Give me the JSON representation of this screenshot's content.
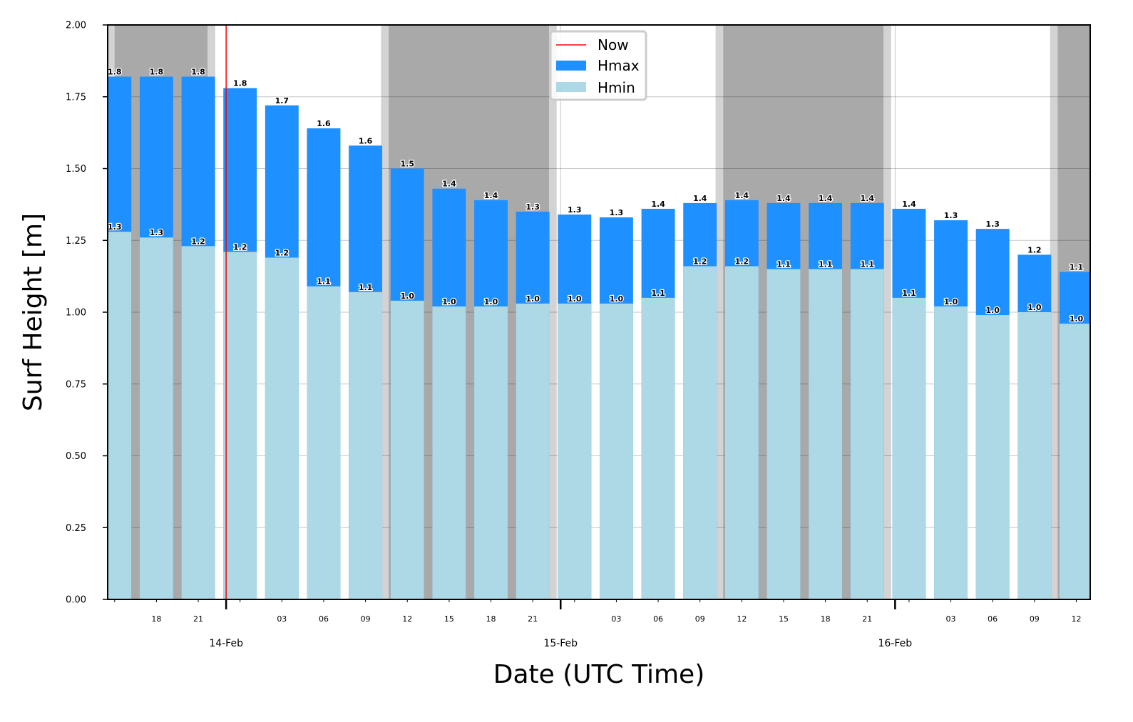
{
  "chart_data": {
    "type": "bar",
    "xlabel": "Date (UTC Time)",
    "ylabel": "Surf Height [m]",
    "ylim": [
      0,
      2.0
    ],
    "yticks": [
      "0.00",
      "0.25",
      "0.50",
      "0.75",
      "1.00",
      "1.25",
      "1.50",
      "1.75",
      "2.00"
    ],
    "grid": true,
    "legend_placement": "top-center",
    "legend": [
      "Now",
      "Hmax",
      "Hmin"
    ],
    "x_start": "2025-02-13 16:00",
    "time_step_hours": 3,
    "hour_labels": [
      "",
      "18",
      "21",
      "",
      "03",
      "06",
      "09",
      "12",
      "15",
      "18",
      "21",
      "",
      "03",
      "06",
      "09",
      "12",
      "15",
      "18",
      "21",
      "",
      "03",
      "06",
      "09",
      "12"
    ],
    "date_labels": [
      {
        "label": "14-Feb",
        "time": "2025-02-14 00:00"
      },
      {
        "label": "15-Feb",
        "time": "2025-02-15 00:00"
      },
      {
        "label": "16-Feb",
        "time": "2025-02-16 00:00"
      }
    ],
    "now": "2025-02-14 00:00",
    "series": [
      {
        "name": "Hmax",
        "color": "#1e90ff",
        "values": [
          1.82,
          1.82,
          1.82,
          1.78,
          1.72,
          1.64,
          1.58,
          1.5,
          1.43,
          1.39,
          1.35,
          1.34,
          1.33,
          1.36,
          1.38,
          1.39,
          1.38,
          1.38,
          1.38,
          1.36,
          1.32,
          1.29,
          1.2,
          1.14
        ],
        "labels": [
          "1.8",
          "1.8",
          "1.8",
          "1.8",
          "1.7",
          "1.6",
          "1.6",
          "1.5",
          "1.4",
          "1.4",
          "1.3",
          "1.3",
          "1.3",
          "1.4",
          "1.4",
          "1.4",
          "1.4",
          "1.4",
          "1.4",
          "1.4",
          "1.3",
          "1.3",
          "1.2",
          "1.1"
        ]
      },
      {
        "name": "Hmin",
        "color": "#add8e6",
        "values": [
          1.28,
          1.26,
          1.23,
          1.21,
          1.19,
          1.09,
          1.07,
          1.04,
          1.02,
          1.02,
          1.03,
          1.03,
          1.03,
          1.05,
          1.16,
          1.16,
          1.15,
          1.15,
          1.15,
          1.05,
          1.02,
          0.99,
          1.0,
          0.96
        ],
        "labels": [
          "1.3",
          "1.3",
          "1.2",
          "1.2",
          "1.2",
          "1.1",
          "1.1",
          "1.0",
          "1.0",
          "1.0",
          "1.0",
          "1.0",
          "1.0",
          "1.1",
          "1.2",
          "1.2",
          "1.1",
          "1.1",
          "1.1",
          "1.1",
          "1.0",
          "1.0",
          "1.0",
          "1.0"
        ]
      }
    ],
    "night_periods": [
      {
        "start": "2025-02-13 16:00",
        "end": "2025-02-13 22:40"
      },
      {
        "start": "2025-02-14 11:40",
        "end": "2025-02-14 23:10"
      },
      {
        "start": "2025-02-15 11:40",
        "end": "2025-02-15 23:10"
      },
      {
        "start": "2025-02-16 11:40",
        "end": "2025-02-16 14:00"
      }
    ],
    "colors": {
      "night": "#a9a9a9",
      "twilight": "#d3d3d3",
      "now": "#ff0000"
    }
  }
}
